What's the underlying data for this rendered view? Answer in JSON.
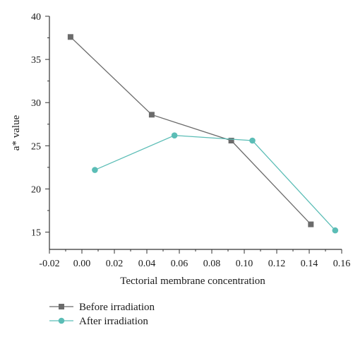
{
  "chart_data": {
    "type": "line",
    "xlabel": "Tectorial membrane concentration",
    "ylabel": "a* value",
    "xlim": [
      -0.02,
      0.16
    ],
    "ylim": [
      13,
      40
    ],
    "xticks": [
      -0.02,
      0.0,
      0.02,
      0.04,
      0.06,
      0.08,
      0.1,
      0.12,
      0.14,
      0.16
    ],
    "xtick_labels": [
      "-0.02",
      "0.00",
      "0.02",
      "0.04",
      "0.06",
      "0.08",
      "0.10",
      "0.12",
      "0.14",
      "0.16"
    ],
    "yticks": [
      15,
      20,
      25,
      30,
      35,
      40
    ],
    "ytick_labels": [
      "15",
      "20",
      "25",
      "30",
      "35",
      "40"
    ],
    "grid": false,
    "legend_position": "bottom-left, below plot",
    "series": [
      {
        "name": "Before irradiation",
        "marker": "square",
        "color": "#6b6b6b",
        "x": [
          -0.007,
          0.043,
          0.092,
          0.141
        ],
        "y": [
          37.6,
          28.6,
          25.6,
          15.9
        ]
      },
      {
        "name": "After irradiation",
        "marker": "circle",
        "color": "#5bbdb6",
        "x": [
          0.008,
          0.057,
          0.105,
          0.156
        ],
        "y": [
          22.2,
          26.2,
          25.6,
          15.2
        ]
      }
    ]
  }
}
